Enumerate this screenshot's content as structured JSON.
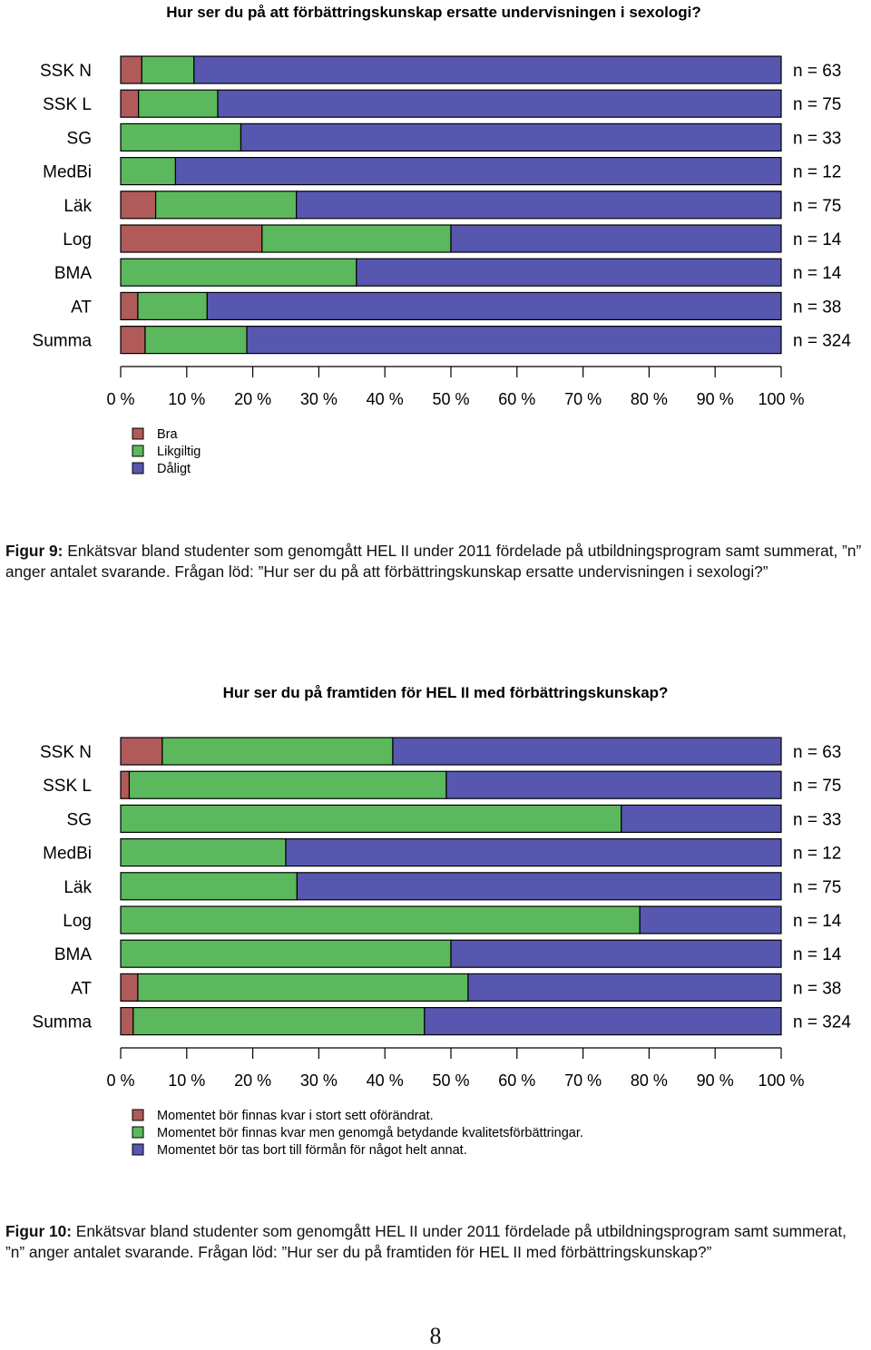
{
  "colors": {
    "bra": "#b05a5a",
    "mid": "#5cb85c",
    "bad": "#5757b0",
    "stroke": "#000000"
  },
  "chart_data": [
    {
      "type": "bar",
      "orientation": "horizontal",
      "stacked": true,
      "title": "Hur ser du på att förbättringskunskap ersatte undervisningen i sexologi?",
      "categories": [
        "SSK N",
        "SSK L",
        "SG",
        "MedBi",
        "Läk",
        "Log",
        "BMA",
        "AT",
        "Summa"
      ],
      "n_labels": [
        "n = 63",
        "n = 75",
        "n = 33",
        "n = 12",
        "n = 75",
        "n = 14",
        "n = 14",
        "n = 38",
        "n = 324"
      ],
      "series": [
        {
          "name": "Bra",
          "values": [
            3.2,
            2.7,
            0,
            0,
            5.3,
            21.4,
            0,
            2.6,
            3.7
          ]
        },
        {
          "name": "Likgiltig",
          "values": [
            7.9,
            12.0,
            18.2,
            8.3,
            21.3,
            28.6,
            35.7,
            10.5,
            15.4
          ]
        },
        {
          "name": "Dåligt",
          "values": [
            88.9,
            85.3,
            81.8,
            91.7,
            73.4,
            50.0,
            64.3,
            86.9,
            80.9
          ]
        }
      ],
      "x_ticks": [
        "0 %",
        "10 %",
        "20 %",
        "30 %",
        "40 %",
        "50 %",
        "60 %",
        "70 %",
        "80 %",
        "90 %",
        "100 %"
      ],
      "xlim": [
        0,
        100
      ],
      "legend": [
        "Bra",
        "Likgiltig",
        "Dåligt"
      ]
    },
    {
      "type": "bar",
      "orientation": "horizontal",
      "stacked": true,
      "title": "Hur ser du på framtiden för HEL II med förbättringskunskap?",
      "categories": [
        "SSK N",
        "SSK L",
        "SG",
        "MedBi",
        "Läk",
        "Log",
        "BMA",
        "AT",
        "Summa"
      ],
      "n_labels": [
        "n = 63",
        "n = 75",
        "n = 33",
        "n = 12",
        "n = 75",
        "n = 14",
        "n = 14",
        "n = 38",
        "n = 324"
      ],
      "series": [
        {
          "name": "Momentet bör finnas kvar i stort sett oförändrat.",
          "values": [
            6.3,
            1.3,
            0,
            0,
            0,
            0,
            0,
            2.6,
            1.9
          ]
        },
        {
          "name": "Momentet bör finnas kvar men genomgå betydande kvalitetsförbättringar.",
          "values": [
            34.9,
            48.0,
            75.8,
            25.0,
            26.7,
            78.6,
            50.0,
            50.0,
            44.1
          ]
        },
        {
          "name": "Momentet bör tas bort till förmån för något helt annat.",
          "values": [
            58.8,
            50.7,
            24.2,
            75.0,
            73.3,
            21.4,
            50.0,
            47.4,
            54.0
          ]
        }
      ],
      "x_ticks": [
        "0 %",
        "10 %",
        "20 %",
        "30 %",
        "40 %",
        "50 %",
        "60 %",
        "70 %",
        "80 %",
        "90 %",
        "100 %"
      ],
      "xlim": [
        0,
        100
      ],
      "legend": [
        "Momentet bör finnas kvar i stort sett oförändrat.",
        "Momentet bör finnas kvar men genomgå betydande kvalitetsförbättringar.",
        "Momentet bör tas bort till förmån för något helt annat."
      ]
    }
  ],
  "captions": [
    {
      "label": "Figur 9:",
      "text": "Enkätsvar bland studenter som genomgått HEL II under 2011 fördelade på utbildningsprogram samt summerat, ”n” anger antalet svarande. Frågan löd: ”Hur ser du på att förbättringskunskap ersatte undervisningen i sexologi?”"
    },
    {
      "label": "Figur 10:",
      "text": "Enkätsvar bland studenter som genomgått HEL II under 2011 fördelade på utbildningsprogram samt summerat, ”n” anger antalet svarande. Frågan löd: ”Hur ser du på framtiden för HEL II med förbättringskunskap?”"
    }
  ],
  "page_number": "8"
}
